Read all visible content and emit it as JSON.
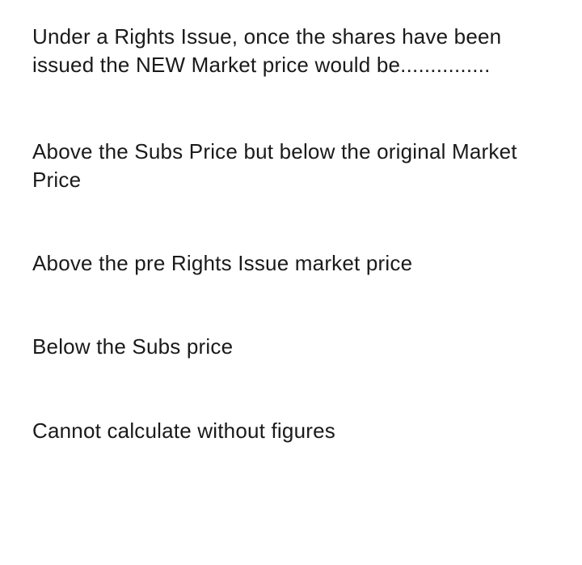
{
  "question": {
    "text": "Under a Rights Issue, once the shares have been issued the NEW Market price would be...............",
    "text_color": "#1a1a1a",
    "font_size": 26,
    "background_color": "#ffffff"
  },
  "options": [
    {
      "label": "Above the Subs Price but below the original Market Price"
    },
    {
      "label": "Above the pre Rights Issue market price"
    },
    {
      "label": "Below the Subs price"
    },
    {
      "label": "Cannot calculate without figures"
    }
  ]
}
